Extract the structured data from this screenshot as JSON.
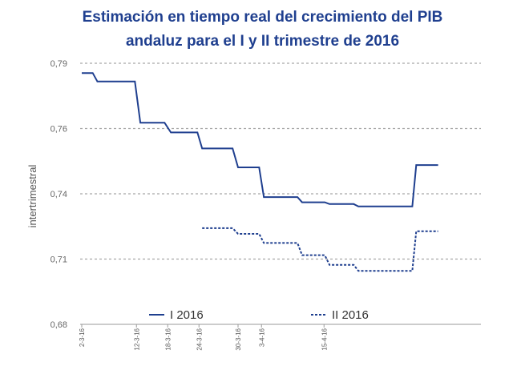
{
  "chart_data": {
    "type": "line",
    "title": "Estimación en tiempo real del crecimiento del PIB andaluz para el I y II trimestre de 2016",
    "title_lines": [
      "Estimación en tiempo real del crecimiento del PIB",
      "andaluz para el I y II trimestre de 2016"
    ],
    "xlabel": "",
    "ylabel": "intertrimestral",
    "ylim": [
      0.68,
      0.79
    ],
    "y_ticks": [
      {
        "value": 0.68,
        "label": "0,68"
      },
      {
        "value": 0.71,
        "label": "0,71"
      },
      {
        "value": 0.74,
        "label": "0,74"
      },
      {
        "value": 0.76,
        "label": "0,76"
      },
      {
        "value": 0.79,
        "label": "0,79"
      }
    ],
    "x_range": [
      0,
      48
    ],
    "x_ticks": [
      {
        "index": 0,
        "label": "2-3-16"
      },
      {
        "index": 7,
        "label": "12-3-16"
      },
      {
        "index": 11,
        "label": "18-3-16"
      },
      {
        "index": 15,
        "label": "24-3-16"
      },
      {
        "index": 20,
        "label": "30-3-16"
      },
      {
        "index": 23,
        "label": "3-4-16"
      },
      {
        "index": 31,
        "label": "15-4-16"
      }
    ],
    "grid": true,
    "legend_position": "bottom",
    "series": [
      {
        "name": "I 2016",
        "style": "solid",
        "color": "#1f3f8f",
        "points": [
          [
            0,
            0.7855
          ],
          [
            1.4,
            0.7855
          ],
          [
            2,
            0.7816
          ],
          [
            6.8,
            0.7816
          ],
          [
            7.5,
            0.7627
          ],
          [
            10.6,
            0.7627
          ],
          [
            11.4,
            0.7588
          ],
          [
            14.8,
            0.7588
          ],
          [
            15.4,
            0.7539
          ],
          [
            19.3,
            0.7539
          ],
          [
            20,
            0.7481
          ],
          [
            22.7,
            0.7481
          ],
          [
            23.3,
            0.7385
          ],
          [
            27.6,
            0.7385
          ],
          [
            28.2,
            0.7361
          ],
          [
            31.1,
            0.7361
          ],
          [
            31.7,
            0.7353
          ],
          [
            34.8,
            0.7353
          ],
          [
            35.4,
            0.7342
          ],
          [
            42.3,
            0.7342
          ],
          [
            42.8,
            0.7488
          ],
          [
            45.6,
            0.7488
          ]
        ]
      },
      {
        "name": "II 2016",
        "style": "dashed",
        "color": "#1f3f8f",
        "points": [
          [
            15.4,
            0.7242
          ],
          [
            19.3,
            0.7242
          ],
          [
            20,
            0.7216
          ],
          [
            22.7,
            0.7216
          ],
          [
            23.3,
            0.7174
          ],
          [
            27.6,
            0.7174
          ],
          [
            28.2,
            0.7118
          ],
          [
            31.1,
            0.7118
          ],
          [
            31.7,
            0.7073
          ],
          [
            34.8,
            0.7073
          ],
          [
            35.4,
            0.7046
          ],
          [
            42.3,
            0.7046
          ],
          [
            42.8,
            0.7228
          ],
          [
            45.6,
            0.7228
          ]
        ]
      }
    ]
  }
}
